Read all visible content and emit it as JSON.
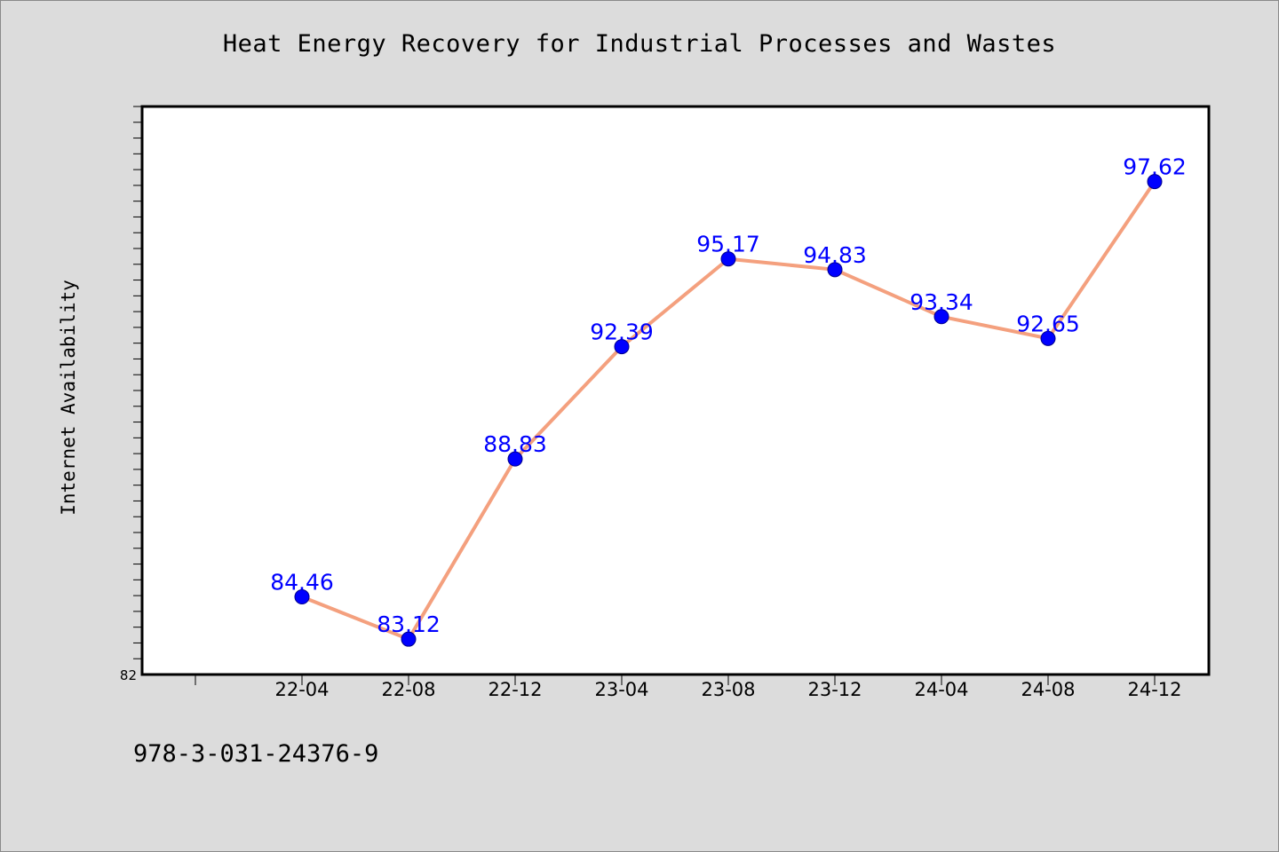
{
  "chart_data": {
    "type": "line",
    "title": "Heat Energy Recovery for Industrial Processes and Wastes",
    "xlabel": "",
    "ylabel": "Internet Availability",
    "categories": [
      "22-04",
      "22-08",
      "22-12",
      "23-04",
      "23-08",
      "23-12",
      "24-04",
      "24-08",
      "24-12"
    ],
    "values": [
      84.46,
      83.12,
      88.83,
      92.39,
      95.17,
      94.83,
      93.34,
      92.65,
      97.62
    ],
    "data_labels": [
      "84.46",
      "83.12",
      "88.83",
      "92.39",
      "95.17",
      "94.83",
      "93.34",
      "92.65",
      "97.62"
    ],
    "ylim": [
      82,
      100
    ],
    "y_tick_labels": [
      {
        "value": 82,
        "label": "82"
      }
    ],
    "grid": false,
    "legend": "none",
    "colors": {
      "line": "#f4a07e",
      "marker": "#0000ff",
      "marker_stroke": "#00008b",
      "data_label": "#0000ff",
      "plot_background": "#ffffff",
      "page_background": "#dcdcdc"
    }
  },
  "footer": {
    "code": "978-3-031-24376-9"
  }
}
